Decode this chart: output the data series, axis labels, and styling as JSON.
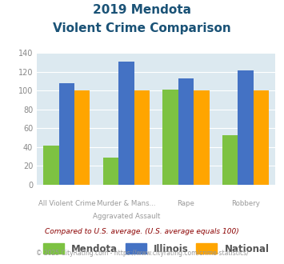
{
  "title_line1": "2019 Mendota",
  "title_line2": "Violent Crime Comparison",
  "top_labels": [
    "",
    "Murder & Mans...",
    "",
    ""
  ],
  "bottom_labels": [
    "All Violent Crime",
    "Aggravated Assault",
    "Rape",
    "Robbery"
  ],
  "mendota": [
    42,
    29,
    101,
    53
  ],
  "illinois": [
    108,
    131,
    113,
    121
  ],
  "national": [
    100,
    100,
    100,
    100
  ],
  "color_mendota": "#7dc242",
  "color_illinois": "#4472c4",
  "color_national": "#ffa500",
  "ylim": [
    0,
    140
  ],
  "yticks": [
    0,
    20,
    40,
    60,
    80,
    100,
    120,
    140
  ],
  "bg_color": "#dce9f0",
  "footnote1": "Compared to U.S. average. (U.S. average equals 100)",
  "footnote2": "© 2025 CityRating.com - https://www.cityrating.com/crime-statistics/",
  "title_color": "#1a5276",
  "footnote1_color": "#8b0000",
  "footnote2_color": "#999999",
  "legend_label_color": "#555555"
}
